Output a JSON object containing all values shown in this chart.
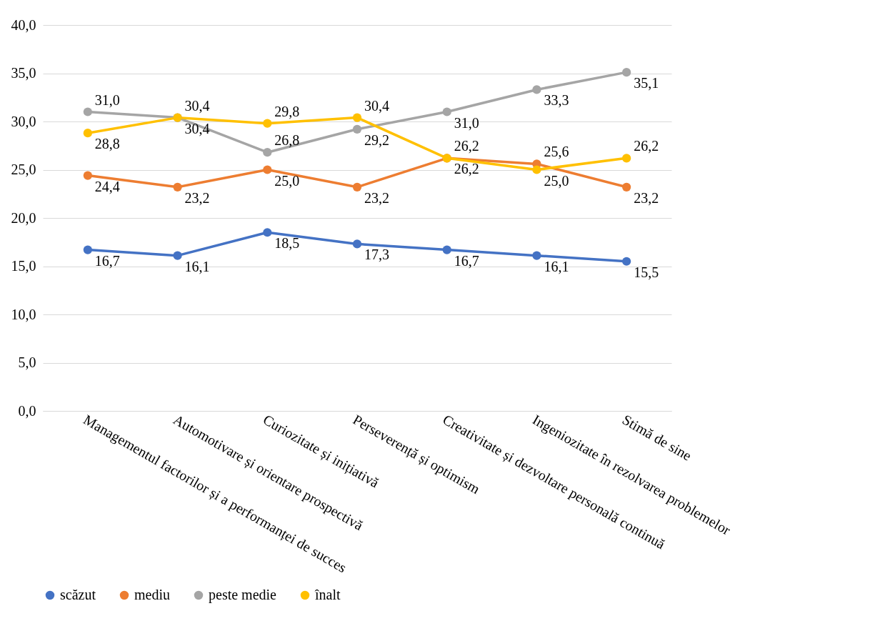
{
  "chart_data": {
    "type": "line",
    "categories": [
      "Managementul factorilor și a performanței de succes",
      "Automotivare și orientare prospectivă",
      "Curiozitate și inițiativă",
      "Perseverență și optimism",
      "Creativitate și dezvoltare personală continuă",
      "Ingeniozitate în rezolvarea problemelor",
      "Stimă de sine"
    ],
    "series": [
      {
        "name": "scăzut",
        "color": "#4472c4",
        "values": [
          16.7,
          16.1,
          18.5,
          17.3,
          16.7,
          16.1,
          15.5
        ],
        "value_labels": [
          "16,7",
          "16,1",
          "18,5",
          "17,3",
          "16,7",
          "16,1",
          "15,5"
        ]
      },
      {
        "name": "mediu",
        "color": "#ed7d31",
        "values": [
          24.4,
          23.2,
          25.0,
          23.2,
          26.2,
          25.6,
          23.2
        ],
        "value_labels": [
          "24,4",
          "23,2",
          "25,0",
          "23,2",
          "26,2",
          "25,6",
          "23,2"
        ]
      },
      {
        "name": "peste medie",
        "color": "#a5a5a5",
        "values": [
          31.0,
          30.4,
          26.8,
          29.2,
          31.0,
          33.3,
          35.1
        ],
        "value_labels": [
          "31,0",
          "30,4",
          "26,8",
          "29,2",
          "31,0",
          "33,3",
          "35,1"
        ]
      },
      {
        "name": "înalt",
        "color": "#ffc000",
        "values": [
          28.8,
          30.4,
          29.8,
          30.4,
          26.2,
          25.0,
          26.2
        ],
        "value_labels": [
          "28,8",
          "30,4",
          "29,8",
          "30,4",
          "26,2",
          "25,0",
          "26,2"
        ]
      }
    ],
    "ylim": [
      0,
      40
    ],
    "yticks": [
      {
        "value": 0,
        "label": "0,0"
      },
      {
        "value": 5,
        "label": "5,0"
      },
      {
        "value": 10,
        "label": "10,0"
      },
      {
        "value": 15,
        "label": "15,0"
      },
      {
        "value": 20,
        "label": "20,0"
      },
      {
        "value": 25,
        "label": "25,0"
      },
      {
        "value": 30,
        "label": "30,0"
      },
      {
        "value": 35,
        "label": "35,0"
      },
      {
        "value": 40,
        "label": "40,0"
      }
    ],
    "grid": "y",
    "legend": "bottom",
    "marker": "circle",
    "line_style": "solid"
  }
}
